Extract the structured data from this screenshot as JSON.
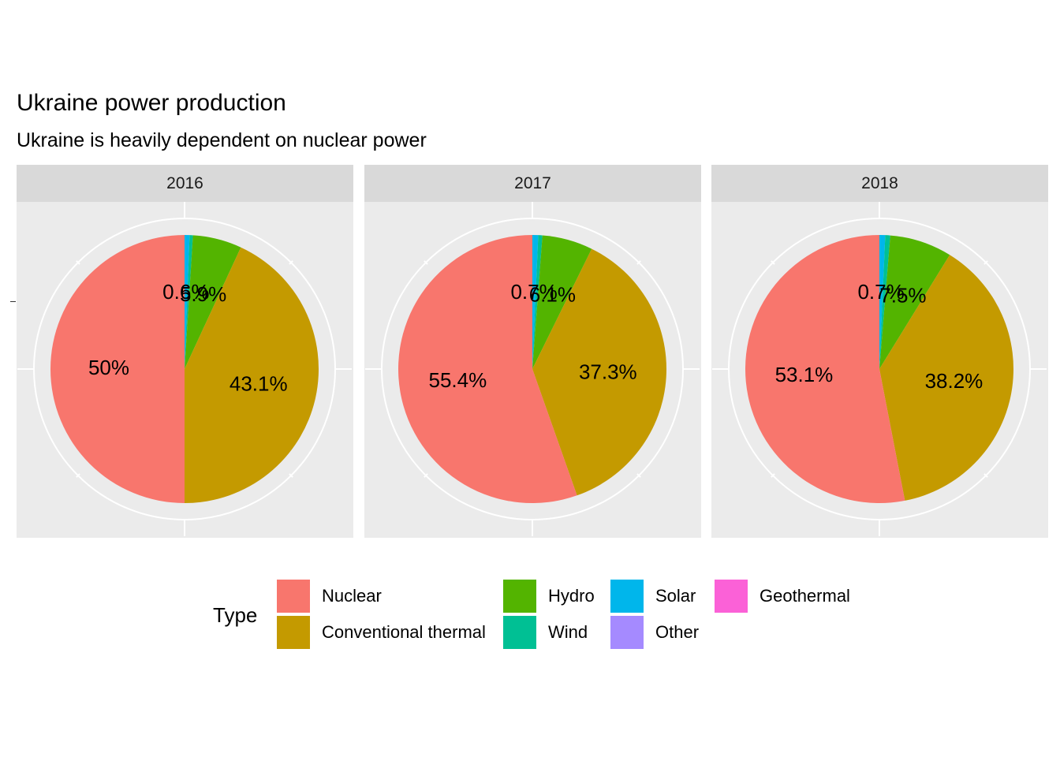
{
  "title": "Ukraine power production",
  "subtitle": "Ukraine is heavily dependent on nuclear power",
  "legend": {
    "title": "Type",
    "entries": [
      {
        "label": "Nuclear",
        "color": "#F8766D"
      },
      {
        "label": "Conventional thermal",
        "color": "#C49A00"
      },
      {
        "label": "Hydro",
        "color": "#53B400"
      },
      {
        "label": "Wind",
        "color": "#00C094"
      },
      {
        "label": "Solar",
        "color": "#00B6EB"
      },
      {
        "label": "Other",
        "color": "#A58AFF"
      },
      {
        "label": "Geothermal",
        "color": "#FB61D7"
      }
    ]
  },
  "chart_data": [
    {
      "type": "pie",
      "facet": "2016",
      "slices": [
        {
          "name": "Solar",
          "value": 0.6,
          "label": "0.6%",
          "color": "#00B6EB"
        },
        {
          "name": "Wind",
          "value": 0.4,
          "label": "",
          "color": "#00C094"
        },
        {
          "name": "Hydro",
          "value": 5.9,
          "label": "5.9%",
          "color": "#53B400"
        },
        {
          "name": "Conventional thermal",
          "value": 43.1,
          "label": "43.1%",
          "color": "#C49A00"
        },
        {
          "name": "Nuclear",
          "value": 50.0,
          "label": "50%",
          "color": "#F8766D"
        }
      ]
    },
    {
      "type": "pie",
      "facet": "2017",
      "slices": [
        {
          "name": "Solar",
          "value": 0.7,
          "label": "0.7%",
          "color": "#00B6EB"
        },
        {
          "name": "Wind",
          "value": 0.5,
          "label": "",
          "color": "#00C094"
        },
        {
          "name": "Hydro",
          "value": 6.1,
          "label": "6.1%",
          "color": "#53B400"
        },
        {
          "name": "Conventional thermal",
          "value": 37.3,
          "label": "37.3%",
          "color": "#C49A00"
        },
        {
          "name": "Nuclear",
          "value": 55.4,
          "label": "55.4%",
          "color": "#F8766D"
        }
      ]
    },
    {
      "type": "pie",
      "facet": "2018",
      "slices": [
        {
          "name": "Solar",
          "value": 0.7,
          "label": "0.7%",
          "color": "#00B6EB"
        },
        {
          "name": "Wind",
          "value": 0.6,
          "label": "",
          "color": "#00C094"
        },
        {
          "name": "Hydro",
          "value": 7.5,
          "label": "7.5%",
          "color": "#53B400"
        },
        {
          "name": "Conventional thermal",
          "value": 38.2,
          "label": "38.2%",
          "color": "#C49A00"
        },
        {
          "name": "Nuclear",
          "value": 53.1,
          "label": "53.1%",
          "color": "#F8766D"
        }
      ]
    }
  ]
}
